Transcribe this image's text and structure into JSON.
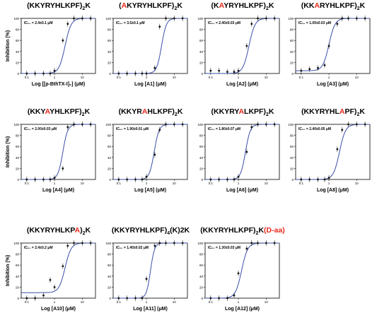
{
  "colors": {
    "curve": "#3b4fa8",
    "highlight": "#e8291c",
    "points": "#111111"
  },
  "ylabel": "Inhibition (%)",
  "chart_data": [
    {
      "type": "scatter",
      "title": [
        {
          "t": "(KKYRYHLKPF)"
        },
        {
          "t": "2",
          "sub": true
        },
        {
          "t": "K"
        }
      ],
      "ic50": "IC₅₀ = 2.4±0.1 μM",
      "xlabel": "Log [[p-BthTX-I]₂] (μM)",
      "x": [
        0.1,
        0.2,
        0.4,
        0.7,
        1,
        2,
        3,
        5,
        10,
        20
      ],
      "y": [
        0,
        0,
        0,
        0,
        5,
        60,
        90,
        100,
        100,
        100
      ],
      "ec50": 2.4,
      "hill": 4,
      "bottom": 0,
      "xticks": [
        "0.1",
        "1",
        "10"
      ],
      "yticks": [
        0,
        20,
        40,
        60,
        80,
        100
      ],
      "ylim": [
        0,
        100
      ]
    },
    {
      "type": "scatter",
      "title": [
        {
          "t": "(",
          "red": false
        },
        {
          "t": "A",
          "red": true
        },
        {
          "t": "KYRYHLKPF)"
        },
        {
          "t": "2",
          "sub": true
        },
        {
          "t": "K"
        }
      ],
      "ic50": "IC₅₀ = 3.5±0.1 μM",
      "xlabel": "Log [A1] (μM)",
      "x": [
        0.1,
        0.2,
        0.4,
        0.7,
        1,
        2,
        3,
        5,
        10,
        20
      ],
      "y": [
        0,
        0,
        0,
        0,
        0,
        10,
        85,
        100,
        100,
        100
      ],
      "ec50": 3.5,
      "hill": 5,
      "bottom": 0,
      "xticks": [
        "0.1",
        "1",
        "10"
      ],
      "yticks": [
        0,
        20,
        40,
        60,
        80,
        100
      ],
      "ylim": [
        0,
        100
      ]
    },
    {
      "type": "scatter",
      "title": [
        {
          "t": "(K"
        },
        {
          "t": "A",
          "red": true
        },
        {
          "t": "YRYHLKPF)"
        },
        {
          "t": "2",
          "sub": true
        },
        {
          "t": "K"
        }
      ],
      "ic50": "IC₅₀ = 2.40±0.03 μM",
      "xlabel": "Log [A2] (μM)",
      "x": [
        0.1,
        0.2,
        0.4,
        0.7,
        1,
        2,
        3,
        5,
        10,
        20
      ],
      "y": [
        5,
        5,
        3,
        3,
        5,
        50,
        90,
        100,
        100,
        100
      ],
      "ec50": 2.4,
      "hill": 4,
      "bottom": 0,
      "xticks": [
        "0.1",
        "1",
        "10"
      ],
      "yticks": [
        0,
        20,
        40,
        60,
        80,
        100
      ],
      "ylim": [
        0,
        100
      ]
    },
    {
      "type": "scatter",
      "title": [
        {
          "t": "(KK"
        },
        {
          "t": "A",
          "red": true
        },
        {
          "t": "RYHLKPF)"
        },
        {
          "t": "2",
          "sub": true
        },
        {
          "t": "K"
        }
      ],
      "ic50": "IC₅₀ = 1.00±0.03 μM",
      "xlabel": "Log [A3] (μM)",
      "x": [
        0.1,
        0.2,
        0.4,
        0.7,
        1,
        2,
        3,
        5,
        10,
        20
      ],
      "y": [
        5,
        8,
        10,
        15,
        50,
        90,
        100,
        100,
        100,
        100
      ],
      "ec50": 1.0,
      "hill": 4,
      "bottom": 5,
      "xticks": [
        "0.1",
        "1",
        "10"
      ],
      "yticks": [
        0,
        20,
        40,
        60,
        80,
        100
      ],
      "ylim": [
        0,
        100
      ]
    },
    {
      "type": "scatter",
      "title": [
        {
          "t": "(KKY"
        },
        {
          "t": "A",
          "red": true
        },
        {
          "t": "YHLKPF)"
        },
        {
          "t": "2",
          "sub": true
        },
        {
          "t": "K"
        }
      ],
      "ic50": "IC₅₀ = 2.00±0.03 μM",
      "xlabel": "Log [A4] (μM)",
      "x": [
        0.1,
        0.2,
        0.4,
        0.7,
        1,
        2,
        3,
        5,
        10,
        20
      ],
      "y": [
        0,
        0,
        0,
        0,
        3,
        20,
        95,
        100,
        100,
        100
      ],
      "ec50": 2.0,
      "hill": 5,
      "bottom": 0,
      "xticks": [
        "0.1",
        "1",
        "10"
      ],
      "yticks": [
        0,
        20,
        40,
        60,
        80,
        100
      ],
      "ylim": [
        0,
        100
      ]
    },
    {
      "type": "scatter",
      "title": [
        {
          "t": "(KKYR"
        },
        {
          "t": "A",
          "red": true
        },
        {
          "t": "HLKPF)"
        },
        {
          "t": "2",
          "sub": true
        },
        {
          "t": "K"
        }
      ],
      "ic50": "IC₅₀ = 1.90±0.01 μM",
      "xlabel": "Log [A5] (μM)",
      "x": [
        0.1,
        0.2,
        0.4,
        0.7,
        1,
        2,
        3,
        5,
        10,
        20
      ],
      "y": [
        0,
        0,
        0,
        0,
        5,
        45,
        90,
        100,
        100,
        100
      ],
      "ec50": 1.9,
      "hill": 5,
      "bottom": 0,
      "xticks": [
        "0.1",
        "1",
        "10"
      ],
      "yticks": [
        0,
        20,
        40,
        60,
        80,
        100
      ],
      "ylim": [
        0,
        100
      ]
    },
    {
      "type": "scatter",
      "title": [
        {
          "t": "(KKYRY"
        },
        {
          "t": "A",
          "red": true
        },
        {
          "t": "LKPF)"
        },
        {
          "t": "2",
          "sub": true
        },
        {
          "t": "K"
        }
      ],
      "ic50": "IC₅₀ = 1.80±0.07 μM",
      "xlabel": "Log [A6] (μM)",
      "x": [
        0.1,
        0.2,
        0.4,
        0.7,
        1,
        2,
        3,
        5,
        10,
        20
      ],
      "y": [
        0,
        0,
        0,
        0,
        5,
        50,
        95,
        100,
        100,
        100
      ],
      "ec50": 1.8,
      "hill": 5,
      "bottom": 0,
      "xticks": [
        "0.1",
        "1",
        "10"
      ],
      "yticks": [
        0,
        20,
        40,
        60,
        80,
        100
      ],
      "ylim": [
        0,
        100
      ]
    },
    {
      "type": "scatter",
      "title": [
        {
          "t": "(KKYRYHL"
        },
        {
          "t": "A",
          "red": true
        },
        {
          "t": "PF)"
        },
        {
          "t": "2",
          "sub": true
        },
        {
          "t": "K"
        }
      ],
      "ic50": "IC₅₀ = 2.40±0.05 μM",
      "xlabel": "Log [A8] (μM)",
      "x": [
        0.1,
        0.2,
        0.4,
        0.7,
        1,
        2,
        3,
        5,
        10,
        20
      ],
      "y": [
        0,
        0,
        0,
        0,
        3,
        55,
        90,
        100,
        100,
        100
      ],
      "ec50": 2.4,
      "hill": 4,
      "bottom": 0,
      "xticks": [
        "0.1",
        "1",
        "10"
      ],
      "yticks": [
        0,
        20,
        40,
        60,
        80,
        100
      ],
      "ylim": [
        0,
        100
      ]
    },
    {
      "type": "scatter",
      "title": [
        {
          "t": "(KKYRYHLKP"
        },
        {
          "t": "A",
          "red": true
        },
        {
          "t": ")"
        },
        {
          "t": "2",
          "sub": true
        },
        {
          "t": "K"
        }
      ],
      "ic50": "IC₅₀ = 2.4±0.2 μM",
      "xlabel": "Log [A10] (μM)",
      "x": [
        0.1,
        0.2,
        0.4,
        0.7,
        1,
        2,
        3,
        5,
        10,
        20
      ],
      "y": [
        0,
        0,
        5,
        33,
        20,
        58,
        95,
        100,
        100,
        100
      ],
      "ec50": 2.4,
      "hill": 4,
      "bottom": 10,
      "xticks": [
        "0.1",
        "1",
        "10"
      ],
      "yticks": [
        0,
        20,
        40,
        60,
        80,
        100
      ],
      "ylim": [
        0,
        100
      ]
    },
    {
      "type": "scatter",
      "title": [
        {
          "t": "(KKYRYHLKPF)"
        },
        {
          "t": "4",
          "sub": true
        },
        {
          "t": "(K)2K"
        }
      ],
      "ic50": "IC₅₀ = 1.40±0.02 μM",
      "xlabel": "Log [A11] (μM)",
      "x": [
        0.1,
        0.2,
        0.4,
        0.7,
        1,
        2,
        3,
        5,
        10,
        20
      ],
      "y": [
        0,
        0,
        0,
        0,
        35,
        95,
        100,
        100,
        100,
        100
      ],
      "ec50": 1.4,
      "hill": 6,
      "bottom": 0,
      "xticks": [
        "0.1",
        "1",
        "10"
      ],
      "yticks": [
        0,
        20,
        40,
        60,
        80,
        100
      ],
      "ylim": [
        0,
        100
      ]
    },
    {
      "type": "scatter",
      "title": [
        {
          "t": "(KKYRYHLKPF)"
        },
        {
          "t": "2",
          "sub": true
        },
        {
          "t": "K"
        },
        {
          "t": "(D-aa)",
          "red": true
        }
      ],
      "ic50": "IC₅₀ = 1.30±0.03 μM",
      "xlabel": "Log [A12] (μM)",
      "x": [
        0.1,
        0.2,
        0.4,
        0.7,
        1,
        2,
        3,
        5,
        10,
        20
      ],
      "y": [
        0,
        0,
        0,
        5,
        45,
        90,
        100,
        100,
        100,
        100
      ],
      "ec50": 1.3,
      "hill": 4,
      "bottom": 0,
      "xticks": [
        "0.1",
        "1",
        "10"
      ],
      "yticks": [
        0,
        20,
        40,
        60,
        80,
        100
      ],
      "ylim": [
        0,
        100
      ]
    }
  ]
}
